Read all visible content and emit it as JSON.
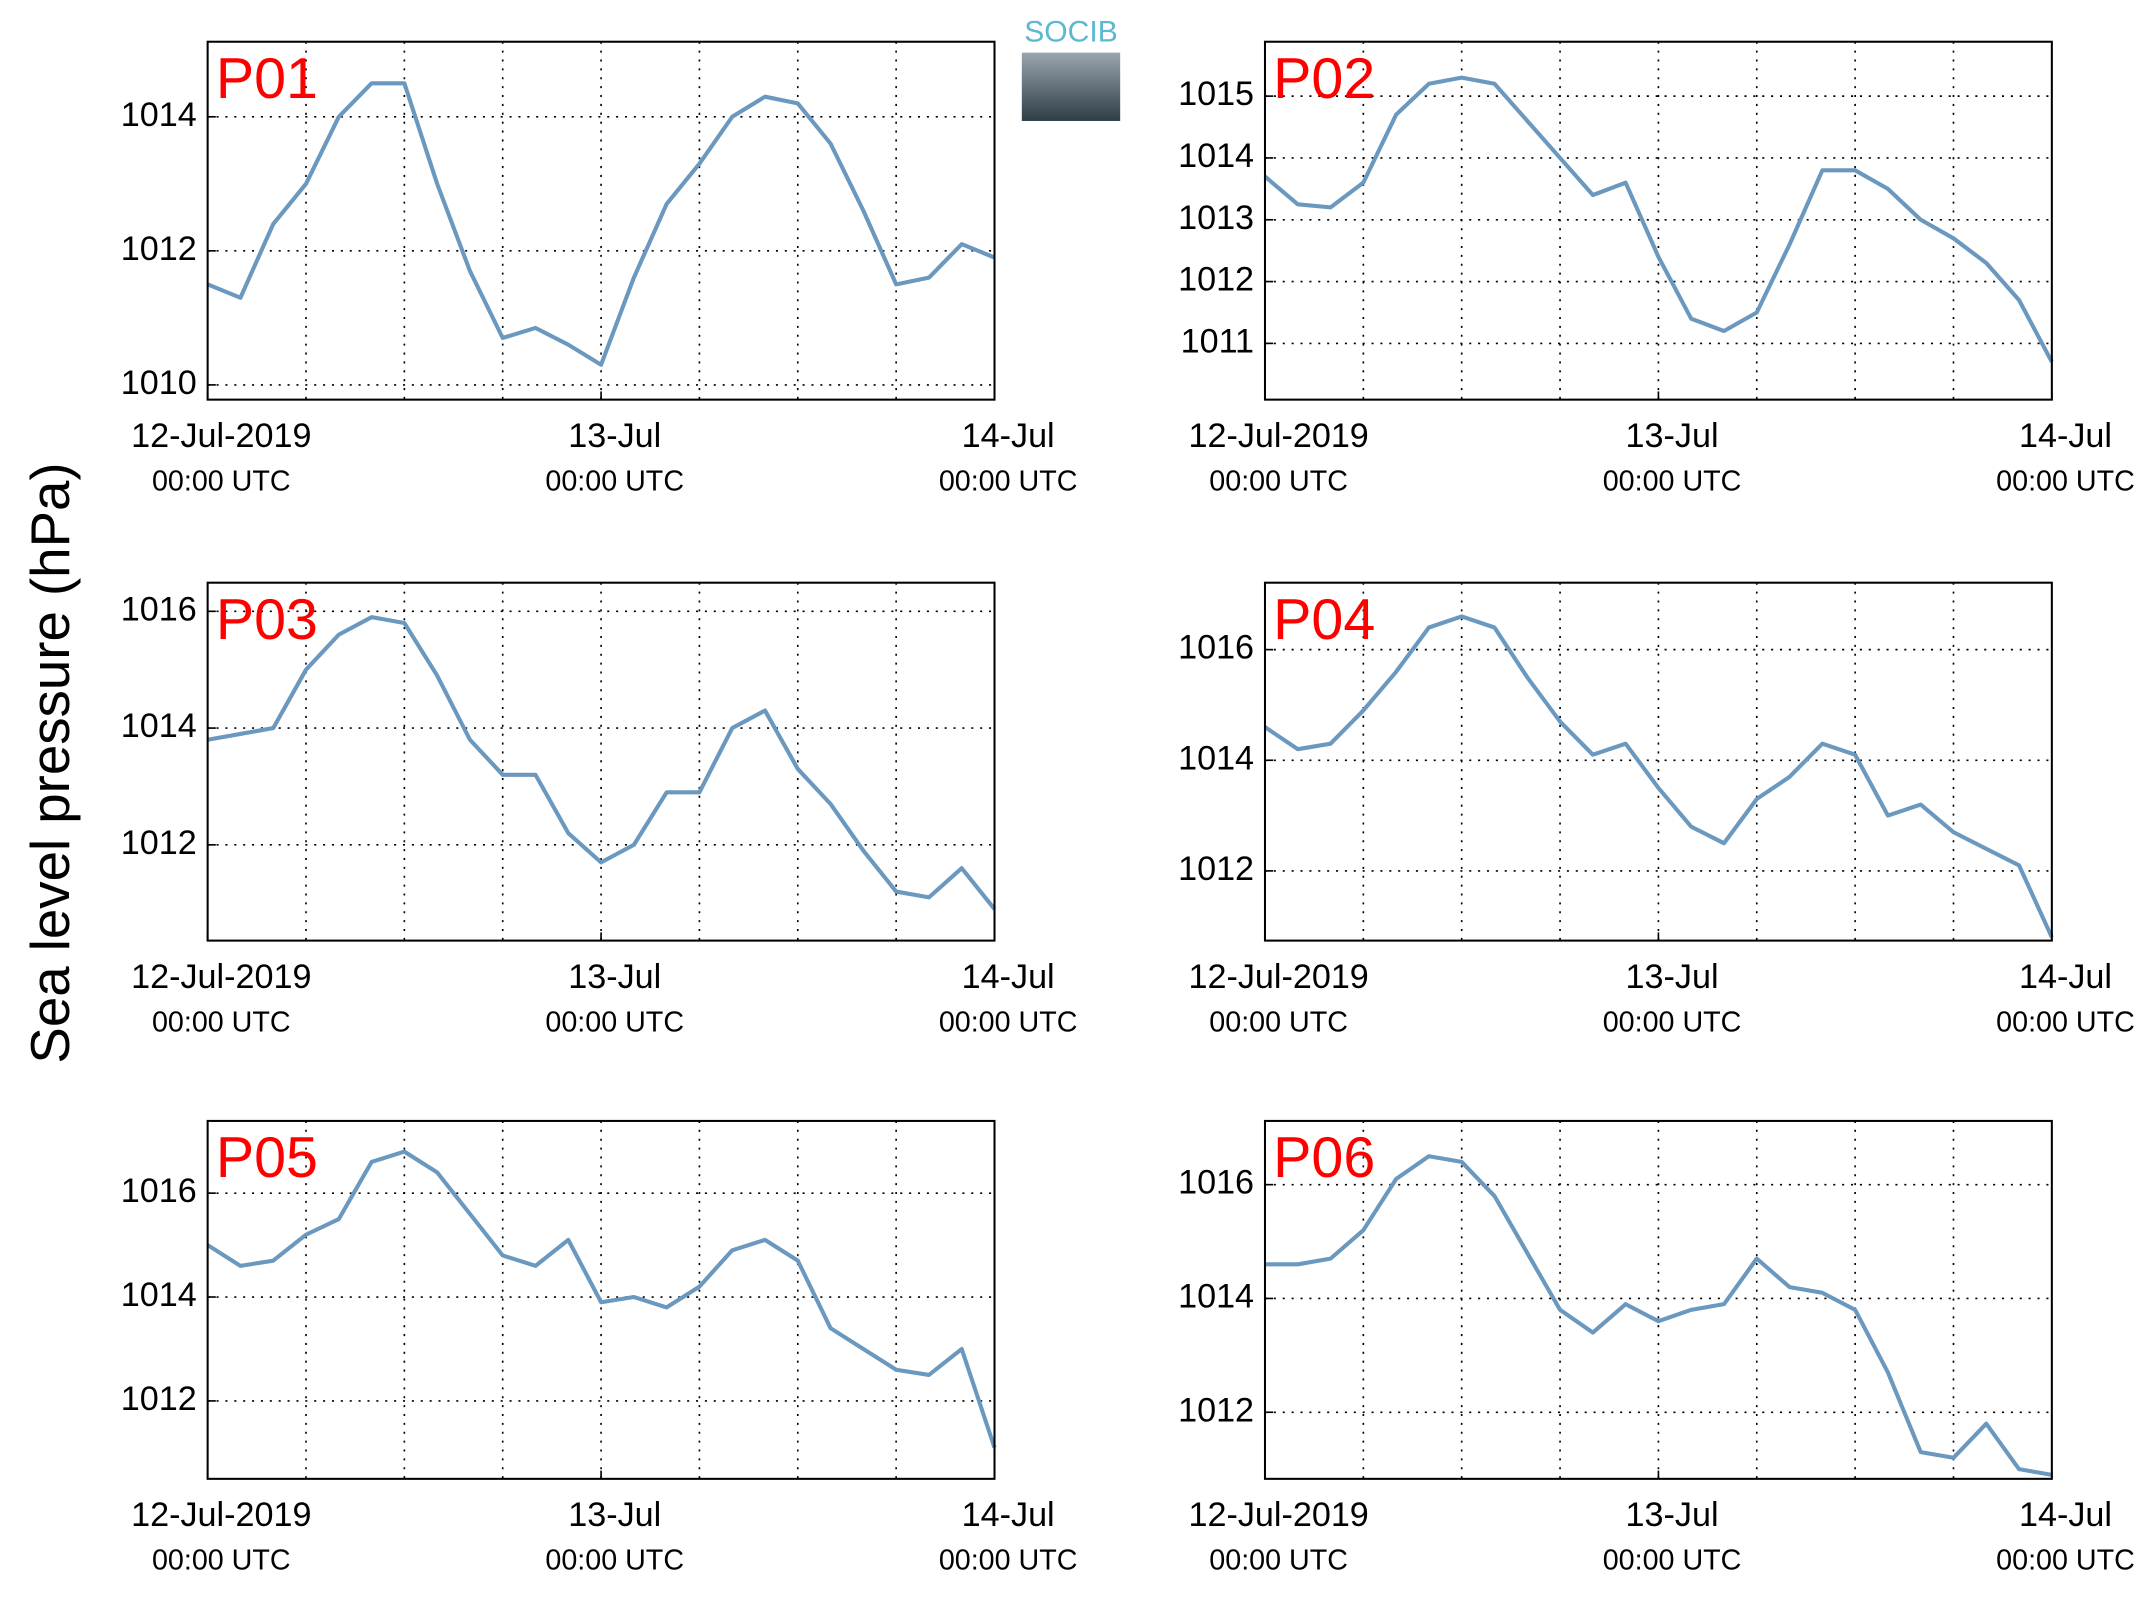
{
  "ylabel": "Sea level pressure (hPa)",
  "logo": "SOCIB",
  "chart_data": [
    {
      "type": "line",
      "title": "P01",
      "color": "#6a98bf",
      "grid": true,
      "x": [
        "2019-07-12 00:00",
        "2019-07-12 02:00",
        "2019-07-12 04:00",
        "2019-07-12 06:00",
        "2019-07-12 08:00",
        "2019-07-12 10:00",
        "2019-07-12 12:00",
        "2019-07-12 14:00",
        "2019-07-12 16:00",
        "2019-07-12 18:00",
        "2019-07-12 20:00",
        "2019-07-12 22:00",
        "2019-07-13 00:00",
        "2019-07-13 02:00",
        "2019-07-13 04:00",
        "2019-07-13 06:00",
        "2019-07-13 08:00",
        "2019-07-13 10:00",
        "2019-07-13 12:00",
        "2019-07-13 14:00",
        "2019-07-13 16:00",
        "2019-07-13 18:00",
        "2019-07-13 20:00",
        "2019-07-13 22:00",
        "2019-07-14 00:00"
      ],
      "values": [
        1011.5,
        1011.3,
        1012.4,
        1013.0,
        1014.0,
        1014.5,
        1014.5,
        1013.0,
        1011.7,
        1010.7,
        1010.85,
        1010.6,
        1010.3,
        1011.6,
        1012.7,
        1013.3,
        1014.0,
        1014.3,
        1014.2,
        1013.6,
        1012.6,
        1011.5,
        1011.6,
        1012.1,
        1011.9
      ],
      "ylim": [
        1009.78,
        1015.12
      ],
      "yticks": [
        1010,
        1012,
        1014
      ],
      "xlim": [
        "2019-07-12 00:00",
        "2019-07-14 00:00"
      ],
      "xticks": [
        {
          "value": "2019-07-12 00:00",
          "label": [
            "12-Jul-2019",
            "00:00 UTC"
          ]
        },
        {
          "value": "2019-07-13 00:00",
          "label": [
            "13-Jul",
            "00:00 UTC"
          ]
        },
        {
          "value": "2019-07-14 00:00",
          "label": [
            "14-Jul",
            "00:00 UTC"
          ]
        }
      ],
      "xgrid": [
        "2019-07-12 06:00",
        "2019-07-12 12:00",
        "2019-07-12 18:00",
        "2019-07-13 00:00",
        "2019-07-13 06:00",
        "2019-07-13 12:00",
        "2019-07-13 18:00"
      ]
    },
    {
      "type": "line",
      "title": "P02",
      "color": "#6a98bf",
      "grid": true,
      "x": [
        "2019-07-12 00:00",
        "2019-07-12 02:00",
        "2019-07-12 04:00",
        "2019-07-12 06:00",
        "2019-07-12 08:00",
        "2019-07-12 10:00",
        "2019-07-12 12:00",
        "2019-07-12 14:00",
        "2019-07-12 16:00",
        "2019-07-12 18:00",
        "2019-07-12 20:00",
        "2019-07-12 22:00",
        "2019-07-13 00:00",
        "2019-07-13 02:00",
        "2019-07-13 04:00",
        "2019-07-13 06:00",
        "2019-07-13 08:00",
        "2019-07-13 10:00",
        "2019-07-13 12:00",
        "2019-07-13 14:00",
        "2019-07-13 16:00",
        "2019-07-13 18:00",
        "2019-07-13 20:00",
        "2019-07-13 22:00",
        "2019-07-14 00:00"
      ],
      "values": [
        1013.7,
        1013.25,
        1013.2,
        1013.6,
        1014.7,
        1015.2,
        1015.3,
        1015.2,
        1014.6,
        1014.0,
        1013.4,
        1013.6,
        1012.4,
        1011.4,
        1011.2,
        1011.5,
        1012.6,
        1013.8,
        1013.8,
        1013.5,
        1013.0,
        1012.7,
        1012.3,
        1011.7,
        1010.7
      ],
      "ylim": [
        1010.09,
        1015.88
      ],
      "yticks": [
        1011,
        1012,
        1013,
        1014,
        1015
      ],
      "xlim": [
        "2019-07-12 00:00",
        "2019-07-14 00:00"
      ],
      "xticks": [
        {
          "value": "2019-07-12 00:00",
          "label": [
            "12-Jul-2019",
            "00:00 UTC"
          ]
        },
        {
          "value": "2019-07-13 00:00",
          "label": [
            "13-Jul",
            "00:00 UTC"
          ]
        },
        {
          "value": "2019-07-14 00:00",
          "label": [
            "14-Jul",
            "00:00 UTC"
          ]
        }
      ],
      "xgrid": [
        "2019-07-12 06:00",
        "2019-07-12 12:00",
        "2019-07-12 18:00",
        "2019-07-13 00:00",
        "2019-07-13 06:00",
        "2019-07-13 12:00",
        "2019-07-13 18:00"
      ]
    },
    {
      "type": "line",
      "title": "P03",
      "color": "#6a98bf",
      "grid": true,
      "x": [
        "2019-07-12 00:00",
        "2019-07-12 02:00",
        "2019-07-12 04:00",
        "2019-07-12 06:00",
        "2019-07-12 08:00",
        "2019-07-12 10:00",
        "2019-07-12 12:00",
        "2019-07-12 14:00",
        "2019-07-12 16:00",
        "2019-07-12 18:00",
        "2019-07-12 20:00",
        "2019-07-12 22:00",
        "2019-07-13 00:00",
        "2019-07-13 02:00",
        "2019-07-13 04:00",
        "2019-07-13 06:00",
        "2019-07-13 08:00",
        "2019-07-13 10:00",
        "2019-07-13 12:00",
        "2019-07-13 14:00",
        "2019-07-13 16:00",
        "2019-07-13 18:00",
        "2019-07-13 20:00",
        "2019-07-13 22:00",
        "2019-07-14 00:00"
      ],
      "values": [
        1013.8,
        1013.9,
        1014.0,
        1015.0,
        1015.6,
        1015.9,
        1015.8,
        1014.9,
        1013.8,
        1013.2,
        1013.2,
        1012.2,
        1011.7,
        1012.0,
        1012.9,
        1012.9,
        1014.0,
        1014.3,
        1013.3,
        1012.7,
        1011.9,
        1011.2,
        1011.1,
        1011.6,
        1010.9
      ],
      "ylim": [
        1010.36,
        1016.49
      ],
      "yticks": [
        1012,
        1014,
        1016
      ],
      "xlim": [
        "2019-07-12 00:00",
        "2019-07-14 00:00"
      ],
      "xticks": [
        {
          "value": "2019-07-12 00:00",
          "label": [
            "12-Jul-2019",
            "00:00 UTC"
          ]
        },
        {
          "value": "2019-07-13 00:00",
          "label": [
            "13-Jul",
            "00:00 UTC"
          ]
        },
        {
          "value": "2019-07-14 00:00",
          "label": [
            "14-Jul",
            "00:00 UTC"
          ]
        }
      ],
      "xgrid": [
        "2019-07-12 06:00",
        "2019-07-12 12:00",
        "2019-07-12 18:00",
        "2019-07-13 00:00",
        "2019-07-13 06:00",
        "2019-07-13 12:00",
        "2019-07-13 18:00"
      ]
    },
    {
      "type": "line",
      "title": "P04",
      "color": "#6a98bf",
      "grid": true,
      "x": [
        "2019-07-12 00:00",
        "2019-07-12 02:00",
        "2019-07-12 04:00",
        "2019-07-12 06:00",
        "2019-07-12 08:00",
        "2019-07-12 10:00",
        "2019-07-12 12:00",
        "2019-07-12 14:00",
        "2019-07-12 16:00",
        "2019-07-12 18:00",
        "2019-07-12 20:00",
        "2019-07-12 22:00",
        "2019-07-13 00:00",
        "2019-07-13 02:00",
        "2019-07-13 04:00",
        "2019-07-13 06:00",
        "2019-07-13 08:00",
        "2019-07-13 10:00",
        "2019-07-13 12:00",
        "2019-07-13 14:00",
        "2019-07-13 16:00",
        "2019-07-13 18:00",
        "2019-07-13 20:00",
        "2019-07-13 22:00",
        "2019-07-14 00:00"
      ],
      "values": [
        1014.6,
        1014.2,
        1014.3,
        1014.9,
        1015.6,
        1016.4,
        1016.6,
        1016.4,
        1015.5,
        1014.7,
        1014.1,
        1014.3,
        1013.5,
        1012.8,
        1012.5,
        1013.3,
        1013.7,
        1014.3,
        1014.1,
        1013.0,
        1013.2,
        1012.7,
        1012.4,
        1012.1,
        1010.8
      ],
      "ylim": [
        1010.74,
        1017.21
      ],
      "yticks": [
        1012,
        1014,
        1016
      ],
      "xlim": [
        "2019-07-12 00:00",
        "2019-07-14 00:00"
      ],
      "xticks": [
        {
          "value": "2019-07-12 00:00",
          "label": [
            "12-Jul-2019",
            "00:00 UTC"
          ]
        },
        {
          "value": "2019-07-13 00:00",
          "label": [
            "13-Jul",
            "00:00 UTC"
          ]
        },
        {
          "value": "2019-07-14 00:00",
          "label": [
            "14-Jul",
            "00:00 UTC"
          ]
        }
      ],
      "xgrid": [
        "2019-07-12 06:00",
        "2019-07-12 12:00",
        "2019-07-12 18:00",
        "2019-07-13 00:00",
        "2019-07-13 06:00",
        "2019-07-13 12:00",
        "2019-07-13 18:00"
      ]
    },
    {
      "type": "line",
      "title": "P05",
      "color": "#6a98bf",
      "grid": true,
      "x": [
        "2019-07-12 00:00",
        "2019-07-12 02:00",
        "2019-07-12 04:00",
        "2019-07-12 06:00",
        "2019-07-12 08:00",
        "2019-07-12 10:00",
        "2019-07-12 12:00",
        "2019-07-12 14:00",
        "2019-07-12 16:00",
        "2019-07-12 18:00",
        "2019-07-12 20:00",
        "2019-07-12 22:00",
        "2019-07-13 00:00",
        "2019-07-13 02:00",
        "2019-07-13 04:00",
        "2019-07-13 06:00",
        "2019-07-13 08:00",
        "2019-07-13 10:00",
        "2019-07-13 12:00",
        "2019-07-13 14:00",
        "2019-07-13 16:00",
        "2019-07-13 18:00",
        "2019-07-13 20:00",
        "2019-07-13 22:00",
        "2019-07-14 00:00"
      ],
      "values": [
        1015.0,
        1014.6,
        1014.7,
        1015.2,
        1015.5,
        1016.6,
        1016.8,
        1016.4,
        1015.6,
        1014.8,
        1014.6,
        1015.1,
        1013.9,
        1014.0,
        1013.8,
        1014.2,
        1014.9,
        1015.1,
        1014.7,
        1013.4,
        1013.0,
        1012.6,
        1012.5,
        1013.0,
        1011.1
      ],
      "ylim": [
        1010.5,
        1017.39
      ],
      "yticks": [
        1012,
        1014,
        1016
      ],
      "xlim": [
        "2019-07-12 00:00",
        "2019-07-14 00:00"
      ],
      "xticks": [
        {
          "value": "2019-07-12 00:00",
          "label": [
            "12-Jul-2019",
            "00:00 UTC"
          ]
        },
        {
          "value": "2019-07-13 00:00",
          "label": [
            "13-Jul",
            "00:00 UTC"
          ]
        },
        {
          "value": "2019-07-14 00:00",
          "label": [
            "14-Jul",
            "00:00 UTC"
          ]
        }
      ],
      "xgrid": [
        "2019-07-12 06:00",
        "2019-07-12 12:00",
        "2019-07-12 18:00",
        "2019-07-13 00:00",
        "2019-07-13 06:00",
        "2019-07-13 12:00",
        "2019-07-13 18:00"
      ]
    },
    {
      "type": "line",
      "title": "P06",
      "color": "#6a98bf",
      "grid": true,
      "x": [
        "2019-07-12 00:00",
        "2019-07-12 02:00",
        "2019-07-12 04:00",
        "2019-07-12 06:00",
        "2019-07-12 08:00",
        "2019-07-12 10:00",
        "2019-07-12 12:00",
        "2019-07-12 14:00",
        "2019-07-12 16:00",
        "2019-07-12 18:00",
        "2019-07-12 20:00",
        "2019-07-12 22:00",
        "2019-07-13 00:00",
        "2019-07-13 02:00",
        "2019-07-13 04:00",
        "2019-07-13 06:00",
        "2019-07-13 08:00",
        "2019-07-13 10:00",
        "2019-07-13 12:00",
        "2019-07-13 14:00",
        "2019-07-13 16:00",
        "2019-07-13 18:00",
        "2019-07-13 20:00",
        "2019-07-13 22:00",
        "2019-07-14 00:00"
      ],
      "values": [
        1014.6,
        1014.6,
        1014.7,
        1015.2,
        1016.1,
        1016.5,
        1016.4,
        1015.8,
        1014.8,
        1013.8,
        1013.4,
        1013.9,
        1013.6,
        1013.8,
        1013.9,
        1014.7,
        1014.2,
        1014.1,
        1013.8,
        1012.7,
        1011.3,
        1011.2,
        1011.8,
        1011.0,
        1010.9
      ],
      "ylim": [
        1010.83,
        1017.12
      ],
      "yticks": [
        1012,
        1014,
        1016
      ],
      "xlim": [
        "2019-07-12 00:00",
        "2019-07-14 00:00"
      ],
      "xticks": [
        {
          "value": "2019-07-12 00:00",
          "label": [
            "12-Jul-2019",
            "00:00 UTC"
          ]
        },
        {
          "value": "2019-07-13 00:00",
          "label": [
            "13-Jul",
            "00:00 UTC"
          ]
        },
        {
          "value": "2019-07-14 00:00",
          "label": [
            "14-Jul",
            "00:00 UTC"
          ]
        }
      ],
      "xgrid": [
        "2019-07-12 06:00",
        "2019-07-12 12:00",
        "2019-07-12 18:00",
        "2019-07-13 00:00",
        "2019-07-13 06:00",
        "2019-07-13 12:00",
        "2019-07-13 18:00"
      ]
    }
  ]
}
